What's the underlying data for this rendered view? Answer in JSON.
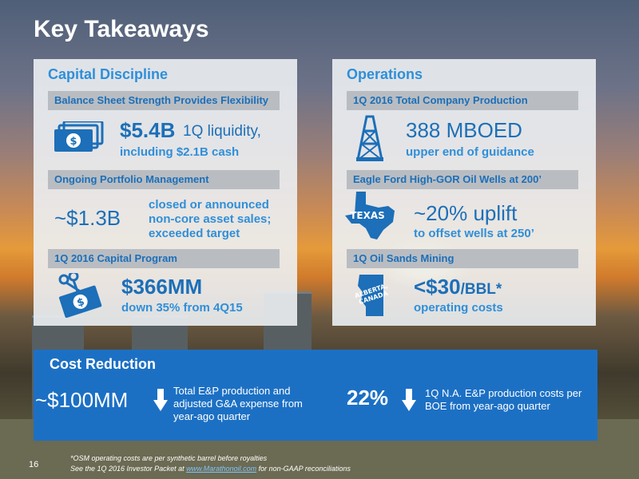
{
  "slide": {
    "title": "Key Takeaways",
    "page_number": "16"
  },
  "capital": {
    "title": "Capital Discipline",
    "bar1": "Balance Sheet Strength Provides Flexibility",
    "liquidity_value": "$5.4B",
    "liquidity_label": "1Q liquidity,",
    "liquidity_sub": "including $2.1B cash",
    "bar2": "Ongoing Portfolio Management",
    "sales_value": "~$1.3B",
    "sales_desc": "closed or announced non-core asset sales; exceeded target",
    "bar3": "1Q 2016 Capital Program",
    "capex_value": "$366MM",
    "capex_sub": "down 35% from 4Q15"
  },
  "operations": {
    "title": "Operations",
    "bar1": "1Q 2016 Total Company Production",
    "production_value": "388 MBOED",
    "production_sub": "upper end of guidance",
    "bar2": "Eagle Ford High-GOR Oil Wells at 200’",
    "texas_label": "TEXAS",
    "uplift_value": "~20% uplift",
    "uplift_sub": "to offset wells at 250’",
    "bar3": "1Q Oil Sands Mining",
    "alberta_label_1": "ALBERTA,",
    "alberta_label_2": "CANADA",
    "osm_value": "<$30",
    "osm_unit": "/BBL*",
    "osm_sub": "operating costs"
  },
  "cost": {
    "title": "Cost Reduction",
    "item1_value": "~$100MM",
    "item1_desc": "Total E&P production and adjusted G&A expense from year-ago quarter",
    "item2_value": "22%",
    "item2_desc": "1Q N.A. E&P production costs per BOE from year-ago quarter"
  },
  "footnotes": {
    "line1": "*OSM operating costs are per synthetic barrel before royalties",
    "line2_pre": "See the 1Q 2016 Investor Packet at ",
    "line2_link": "www.Marathonoil.com",
    "line2_post": " for non-GAAP reconciliations"
  },
  "colors": {
    "accent_blue": "#1c70c4",
    "light_blue": "#2f8fd8"
  }
}
